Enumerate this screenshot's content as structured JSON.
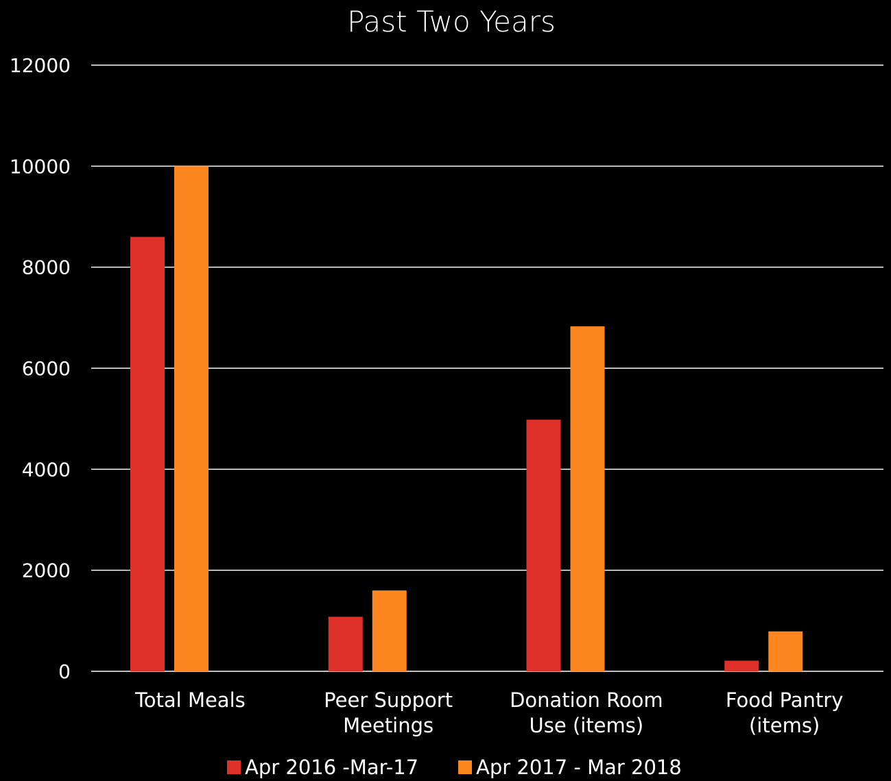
{
  "chart_data": {
    "type": "bar",
    "title": "Past Two Years",
    "categories": [
      [
        "Total Meals"
      ],
      [
        "Peer Support",
        "Meetings"
      ],
      [
        "Donation Room",
        "Use (items)"
      ],
      [
        "Food Pantry",
        "(items)"
      ]
    ],
    "series": [
      {
        "name": "Apr 2016 -Mar-17",
        "color": "#e0302a",
        "values": [
          8600,
          1080,
          4980,
          210
        ]
      },
      {
        "name": "Apr 2017 - Mar 2018",
        "color": "#fd8620",
        "values": [
          10000,
          1600,
          6830,
          790
        ]
      }
    ],
    "ylim": [
      0,
      12000
    ],
    "yticks": [
      0,
      2000,
      4000,
      6000,
      8000,
      10000,
      12000
    ],
    "grid": true,
    "legend_position": "bottom"
  }
}
